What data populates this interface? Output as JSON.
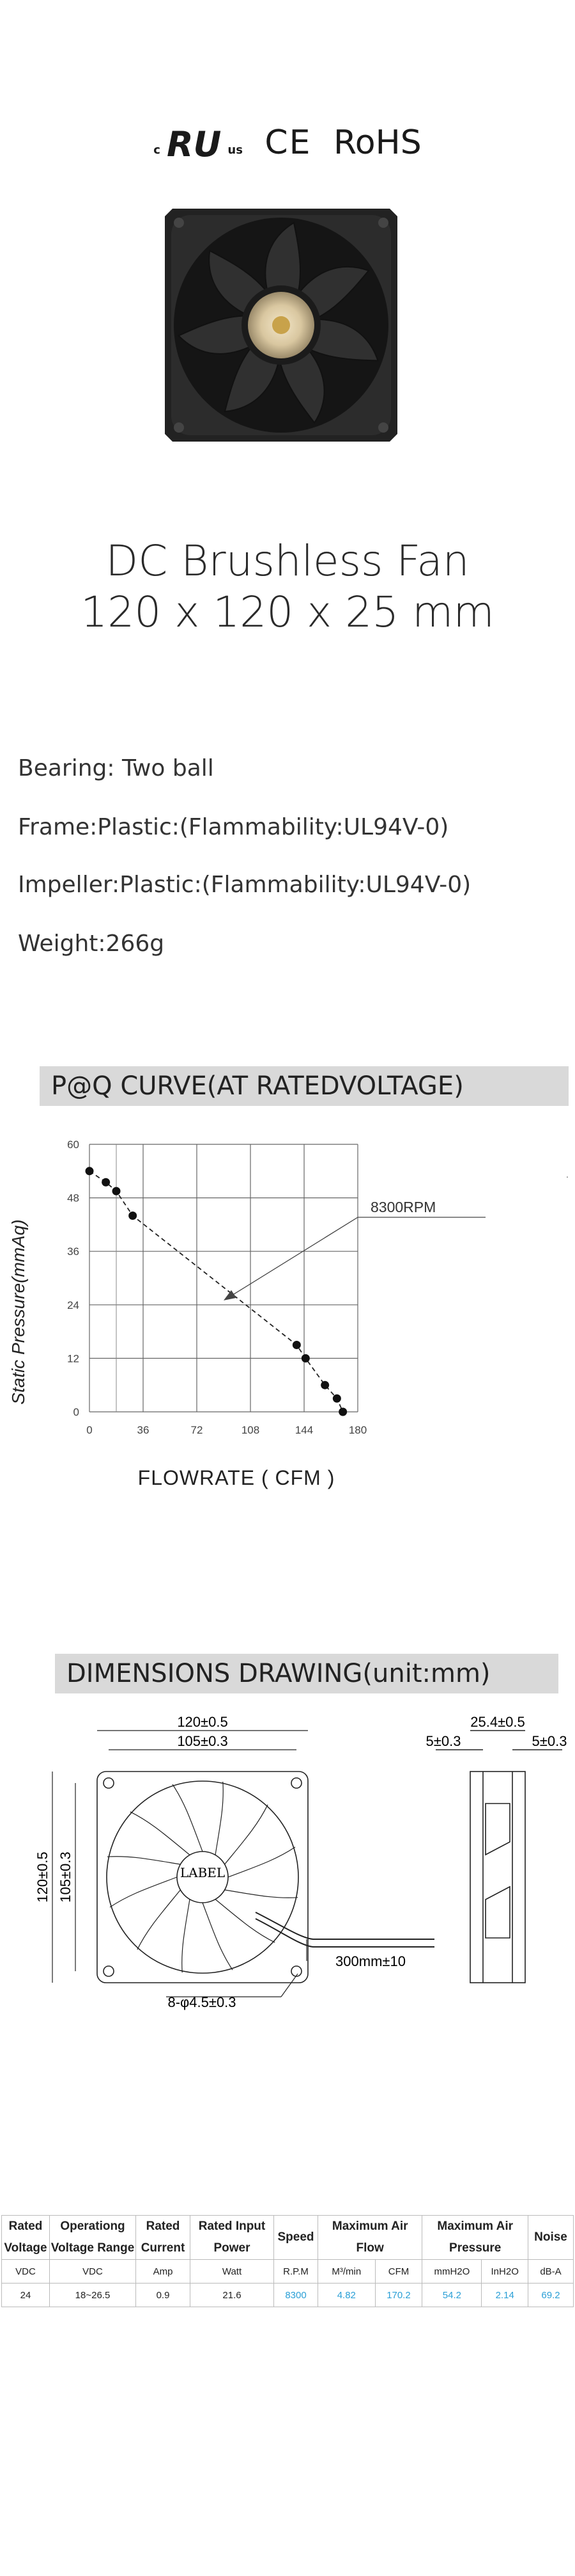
{
  "certifications": {
    "ul": "c",
    "ul_main": "RU",
    "ul_us": "us",
    "ce": "CE",
    "rohs": "RoHS"
  },
  "title": {
    "line1": "DC Brushless Fan",
    "line2": "120 x 120 x 25 mm"
  },
  "specs": {
    "bearing": "Bearing: Two ball",
    "frame": "Frame:Plastic:(Flammability:UL94V-0)",
    "impeller": "Impeller:Plastic:(Flammability:UL94V-0)",
    "weight": "Weight:266g"
  },
  "pq_section": {
    "heading": "P@Q CURVE(AT RATEDVOLTAGE)"
  },
  "chart_data": {
    "type": "line",
    "title": "",
    "xlabel": "FLOWRATE ( CFM )",
    "ylabel": "Static Pressure(mmAq)",
    "x_ticks": [
      "0",
      "36",
      "72",
      "108",
      "144",
      "180"
    ],
    "y_ticks": [
      "0",
      "12",
      "24",
      "36",
      "48",
      "60"
    ],
    "xlim": [
      0,
      180
    ],
    "ylim": [
      0,
      60
    ],
    "grid": true,
    "annotation": "8300RPM",
    "series": [
      {
        "name": "8300RPM",
        "x": [
          0,
          11,
          18,
          29,
          139,
          145,
          158,
          166,
          170
        ],
        "y": [
          54,
          51.5,
          49.5,
          44,
          15,
          12,
          6,
          3,
          0
        ]
      }
    ]
  },
  "dimensions_section": {
    "heading": "DIMENSIONS DRAWING(unit:mm)",
    "labels": {
      "outer_width": "120±0.5",
      "hole_width": "105±0.3",
      "outer_height": "120±0.5",
      "hole_height": "105±0.3",
      "label_text": "LABEL",
      "cable": "300mm±10",
      "holes": "8-φ4.5±0.3",
      "depth": "25.4±0.5",
      "flange_left": "5±0.3",
      "flange_right": "5±0.3"
    }
  },
  "table": {
    "headers": [
      "Rated Voltage",
      "Operationg Voltage Range",
      "Rated Current",
      "Rated Input Power",
      "Speed",
      "Maximum Air Flow",
      "Maximum Air Pressure",
      "Noise"
    ],
    "units": [
      "VDC",
      "VDC",
      "Amp",
      "Watt",
      "R.P.M",
      "M³/min",
      "CFM",
      "mmH2O",
      "InH2O",
      "dB-A"
    ],
    "row": [
      "24",
      "18~26.5",
      "0.9",
      "21.6",
      "8300",
      "4.82",
      "170.2",
      "54.2",
      "2.14",
      "69.2"
    ]
  },
  "colors": {
    "accent": "#2a9fd6",
    "section_bar": "#d9d9d9"
  }
}
